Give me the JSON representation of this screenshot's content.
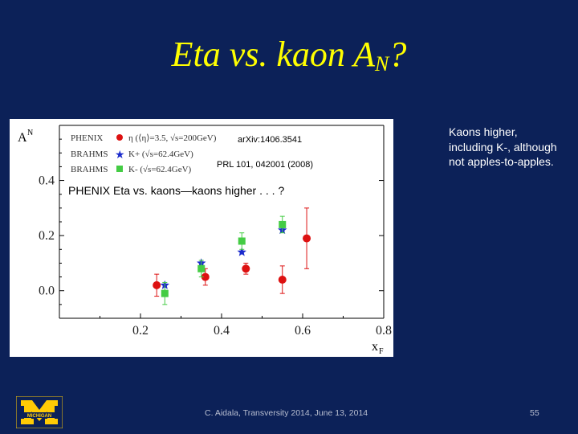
{
  "slide": {
    "title_main": "Eta vs. kaon A",
    "title_sub": "N",
    "title_end": "?",
    "side_note": "Kaons higher, including K-, although not apples-to-apples.",
    "footer": "C. Aidala, Transversity 2014, June 13, 2014",
    "page_number": "55",
    "logo_text": "MICHIGAN"
  },
  "chart_data": {
    "type": "scatter",
    "xlabel": "x",
    "xlabel_sub": "F",
    "ylabel": "A",
    "ylabel_sub": "N",
    "xlim": [
      0.0,
      0.8
    ],
    "ylim": [
      -0.1,
      0.6
    ],
    "x_ticks": [
      0.2,
      0.4,
      0.6,
      0.8
    ],
    "x_tick_labels": [
      "0.2",
      "0.4",
      "0.6",
      "0.8"
    ],
    "y_ticks": [
      0.0,
      0.2,
      0.4
    ],
    "y_tick_labels": [
      "0.0",
      "0.2",
      "0.4"
    ],
    "grid": false,
    "legend_position": "top-left",
    "legend": [
      {
        "experiment": "PHENIX",
        "marker": "circle",
        "color": "#dd1111",
        "text": "η (⟨η⟩=3.5, √s=200GeV)"
      },
      {
        "experiment": "BRAHMS",
        "marker": "star",
        "color": "#1a2acc",
        "text": "K+ (√s=62.4GeV)"
      },
      {
        "experiment": "BRAHMS",
        "marker": "square",
        "color": "#44cc44",
        "text": "K- (√s=62.4GeV)"
      }
    ],
    "annotations": [
      "arXiv:1406.3541",
      "PRL 101, 042001 (2008)",
      "PHENIX Eta vs. kaons—kaons higher . . . ?"
    ],
    "series": [
      {
        "marker": "circle",
        "color": "#dd1111",
        "points": [
          {
            "x": 0.24,
            "y": 0.02,
            "err": 0.04
          },
          {
            "x": 0.36,
            "y": 0.05,
            "err": 0.03
          },
          {
            "x": 0.46,
            "y": 0.08,
            "err": 0.02
          },
          {
            "x": 0.55,
            "y": 0.04,
            "err": 0.05
          },
          {
            "x": 0.61,
            "y": 0.19,
            "err": 0.11
          }
        ]
      },
      {
        "marker": "star",
        "color": "#1a2acc",
        "points": [
          {
            "x": 0.26,
            "y": 0.02,
            "err": 0.0
          },
          {
            "x": 0.35,
            "y": 0.1,
            "err": 0.0
          },
          {
            "x": 0.45,
            "y": 0.14,
            "err": 0.0
          },
          {
            "x": 0.55,
            "y": 0.22,
            "err": 0.0
          }
        ]
      },
      {
        "marker": "square",
        "color": "#44cc44",
        "points": [
          {
            "x": 0.26,
            "y": -0.01,
            "err": 0.04
          },
          {
            "x": 0.35,
            "y": 0.08,
            "err": 0.03
          },
          {
            "x": 0.45,
            "y": 0.18,
            "err": 0.03
          },
          {
            "x": 0.55,
            "y": 0.24,
            "err": 0.03
          }
        ]
      }
    ]
  }
}
